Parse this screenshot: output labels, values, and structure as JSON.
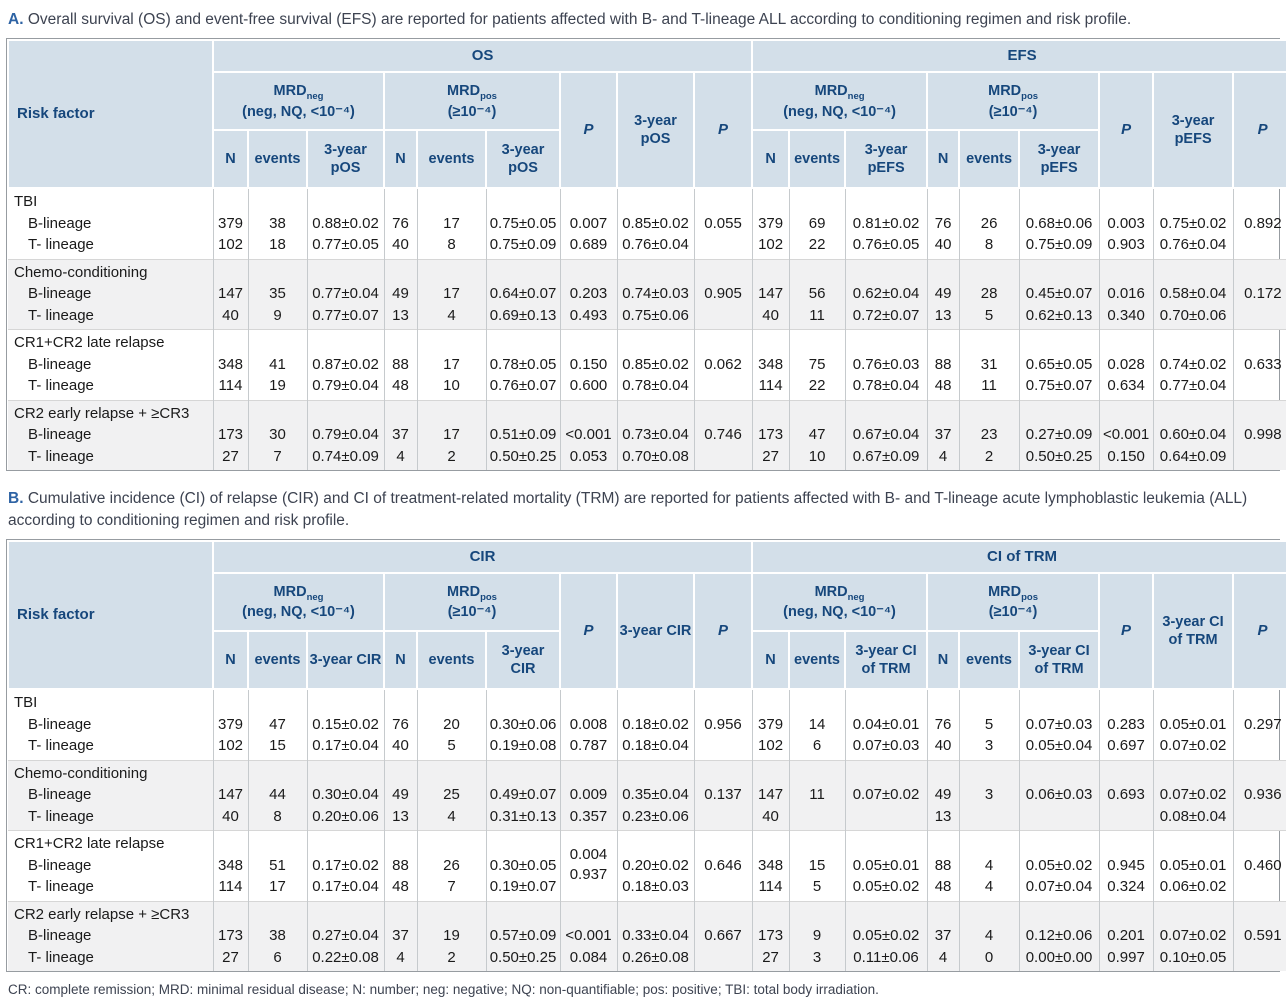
{
  "captions": {
    "a": {
      "prefix": "A.",
      "text": "Overall survival (OS) and event-free survival (EFS) are reported for patients affected with B- and T-lineage ALL according to conditioning regimen and risk profile."
    },
    "b": {
      "prefix": "B.",
      "text": "Cumulative incidence (CI) of relapse (CIR) and CI of treatment-related mortality (TRM) are reported for patients affected with B- and T-lineage acute lymphoblastic leukemia (ALL) according to conditioning regimen and risk profile."
    }
  },
  "footnote": "CR: complete remission; MRD: minimal residual disease; N: number; neg: negative; NQ: non-quantifiable; pos: positive; TBI: total body irradiation.",
  "colors": {
    "header_bg": "#d3dfe9",
    "header_text": "#16477c",
    "caption_accent": "#2e63a4",
    "alt_row_bg": "#f1f1f2",
    "body_text": "#1a1a1a"
  },
  "tables": [
    {
      "name": "Table A - OS and EFS",
      "risk_factor_label": "Risk factor",
      "sections": [
        {
          "title": "OS",
          "mrd_neg": {
            "base": "MRD",
            "sub": "neg",
            "qualifier": "(neg, NQ, <10⁻⁴)"
          },
          "mrd_pos": {
            "base": "MRD",
            "sub": "pos",
            "qualifier": "(≥10⁻⁴)"
          },
          "n_label": "N",
          "events_label": "events",
          "outcome_label": "3-year pOS",
          "p_label": "P",
          "overall_label": "3-year pOS"
        },
        {
          "title": "EFS",
          "mrd_neg": {
            "base": "MRD",
            "sub": "neg",
            "qualifier": "(neg, NQ, <10⁻⁴)"
          },
          "mrd_pos": {
            "base": "MRD",
            "sub": "pos",
            "qualifier": "(≥10⁻⁴)"
          },
          "n_label": "N",
          "events_label": "events",
          "outcome_label": "3-year pEFS",
          "p_label": "P",
          "overall_label": "3-year pEFS"
        }
      ],
      "groups": [
        {
          "label": "TBI",
          "rows": [
            {
              "name": "B-lineage",
              "values": [
                "379",
                "38",
                "0.88±0.02",
                "76",
                "17",
                "0.75±0.05",
                "0.007",
                "0.85±0.02",
                "0.055",
                "379",
                "69",
                "0.81±0.02",
                "76",
                "26",
                "0.68±0.06",
                "0.003",
                "0.75±0.02",
                "0.892"
              ]
            },
            {
              "name": "T- lineage",
              "values": [
                "102",
                "18",
                "0.77±0.05",
                "40",
                "8",
                "0.75±0.09",
                "0.689",
                "0.76±0.04",
                "",
                "102",
                "22",
                "0.76±0.05",
                "40",
                "8",
                "0.75±0.09",
                "0.903",
                "0.76±0.04",
                ""
              ]
            }
          ]
        },
        {
          "label": "Chemo-conditioning",
          "rows": [
            {
              "name": "B-lineage",
              "values": [
                "147",
                "35",
                "0.77±0.04",
                "49",
                "17",
                "0.64±0.07",
                "0.203",
                "0.74±0.03",
                "0.905",
                "147",
                "56",
                "0.62±0.04",
                "49",
                "28",
                "0.45±0.07",
                "0.016",
                "0.58±0.04",
                "0.172"
              ]
            },
            {
              "name": "T- lineage",
              "values": [
                "40",
                "9",
                "0.77±0.07",
                "13",
                "4",
                "0.69±0.13",
                "0.493",
                "0.75±0.06",
                "",
                "40",
                "11",
                "0.72±0.07",
                "13",
                "5",
                "0.62±0.13",
                "0.340",
                "0.70±0.06",
                ""
              ]
            }
          ]
        },
        {
          "label": "CR1+CR2 late relapse",
          "rows": [
            {
              "name": "B-lineage",
              "values": [
                "348",
                "41",
                "0.87±0.02",
                "88",
                "17",
                "0.78±0.05",
                "0.150",
                "0.85±0.02",
                "0.062",
                "348",
                "75",
                "0.76±0.03",
                "88",
                "31",
                "0.65±0.05",
                "0.028",
                "0.74±0.02",
                "0.633"
              ]
            },
            {
              "name": "T- lineage",
              "values": [
                "114",
                "19",
                "0.79±0.04",
                "48",
                "10",
                "0.76±0.07",
                "0.600",
                "0.78±0.04",
                "",
                "114",
                "22",
                "0.78±0.04",
                "48",
                "11",
                "0.75±0.07",
                "0.634",
                "0.77±0.04",
                ""
              ]
            }
          ]
        },
        {
          "label": "CR2 early relapse + ≥CR3",
          "rows": [
            {
              "name": "B-lineage",
              "values": [
                "173",
                "30",
                "0.79±0.04",
                "37",
                "17",
                "0.51±0.09",
                "<0.001",
                "0.73±0.04",
                "0.746",
                "173",
                "47",
                "0.67±0.04",
                "37",
                "23",
                "0.27±0.09",
                "<0.001",
                "0.60±0.04",
                "0.998"
              ]
            },
            {
              "name": "T- lineage",
              "values": [
                "27",
                "7",
                "0.74±0.09",
                "4",
                "2",
                "0.50±0.25",
                "0.053",
                "0.70±0.08",
                "",
                "27",
                "10",
                "0.67±0.09",
                "4",
                "2",
                "0.50±0.25",
                "0.150",
                "0.64±0.09",
                ""
              ]
            }
          ]
        }
      ]
    },
    {
      "name": "Table B - CIR and CI of TRM",
      "risk_factor_label": "Risk factor",
      "sections": [
        {
          "title": "CIR",
          "mrd_neg": {
            "base": "MRD",
            "sub": "neg",
            "qualifier": "(neg, NQ, <10⁻⁴)"
          },
          "mrd_pos": {
            "base": "MRD",
            "sub": "pos",
            "qualifier": "(≥10⁻⁴)"
          },
          "n_label": "N",
          "events_label": "events",
          "outcome_label": "3-year CIR",
          "p_label": "P",
          "overall_label": "3-year CIR"
        },
        {
          "title": "CI of TRM",
          "mrd_neg": {
            "base": "MRD",
            "sub": "neg",
            "qualifier": "(neg, NQ, <10⁻⁴)"
          },
          "mrd_pos": {
            "base": "MRD",
            "sub": "pos",
            "qualifier": "(≥10⁻⁴)"
          },
          "n_label": "N",
          "events_label": "events",
          "outcome_label": "3-year CI of TRM",
          "p_label": "P",
          "overall_label": "3-year CI of TRM"
        }
      ],
      "groups": [
        {
          "label": "TBI",
          "rows": [
            {
              "name": "B-lineage",
              "values": [
                "379",
                "47",
                "0.15±0.02",
                "76",
                "20",
                "0.30±0.06",
                "0.008",
                "0.18±0.02",
                "0.956",
                "379",
                "14",
                "0.04±0.01",
                "76",
                "5",
                "0.07±0.03",
                "0.283",
                "0.05±0.01",
                "0.297"
              ]
            },
            {
              "name": "T- lineage",
              "values": [
                "102",
                "15",
                "0.17±0.04",
                "40",
                "5",
                "0.19±0.08",
                "0.787",
                "0.18±0.04",
                "",
                "102",
                "6",
                "0.07±0.03",
                "40",
                "3",
                "0.05±0.04",
                "0.697",
                "0.07±0.02",
                ""
              ]
            }
          ]
        },
        {
          "label": "Chemo-conditioning",
          "rows": [
            {
              "name": "B-lineage",
              "values": [
                "147",
                "44",
                "0.30±0.04",
                "49",
                "25",
                "0.49±0.07",
                "0.009",
                "0.35±0.04",
                "0.137",
                "147",
                "11",
                "0.07±0.02",
                "49",
                "3",
                "0.06±0.03",
                "0.693",
                "0.07±0.02",
                "0.936"
              ]
            },
            {
              "name": "T- lineage",
              "values": [
                "40",
                "8",
                "0.20±0.06",
                "13",
                "4",
                "0.31±0.13",
                "0.357",
                "0.23±0.06",
                "",
                "40",
                "",
                "",
                "13",
                "",
                "",
                "",
                "0.08±0.04",
                ""
              ]
            }
          ]
        },
        {
          "label": "CR1+CR2 late relapse",
          "centered_cells": {
            "6": [
              "0.004",
              "0.937"
            ]
          },
          "rows": [
            {
              "name": "B-lineage",
              "values": [
                "348",
                "51",
                "0.17±0.02",
                "88",
                "26",
                "0.30±0.05",
                "",
                "0.20±0.02",
                "0.646",
                "348",
                "15",
                "0.05±0.01",
                "88",
                "4",
                "0.05±0.02",
                "0.945",
                "0.05±0.01",
                "0.460"
              ]
            },
            {
              "name": "T- lineage",
              "values": [
                "114",
                "17",
                "0.17±0.04",
                "48",
                "7",
                "0.19±0.07",
                "",
                "0.18±0.03",
                "",
                "114",
                "5",
                "0.05±0.02",
                "48",
                "4",
                "0.07±0.04",
                "0.324",
                "0.06±0.02",
                ""
              ]
            }
          ]
        },
        {
          "label": "CR2 early relapse + ≥CR3",
          "rows": [
            {
              "name": "B-lineage",
              "values": [
                "173",
                "38",
                "0.27±0.04",
                "37",
                "19",
                "0.57±0.09",
                "<0.001",
                "0.33±0.04",
                "0.667",
                "173",
                "9",
                "0.05±0.02",
                "37",
                "4",
                "0.12±0.06",
                "0.201",
                "0.07±0.02",
                "0.591"
              ]
            },
            {
              "name": "T- lineage",
              "values": [
                "27",
                "6",
                "0.22±0.08",
                "4",
                "2",
                "0.50±0.25",
                "0.084",
                "0.26±0.08",
                "",
                "27",
                "3",
                "0.11±0.06",
                "4",
                "0",
                "0.00±0.00",
                "0.997",
                "0.10±0.05",
                ""
              ]
            }
          ]
        }
      ]
    }
  ]
}
